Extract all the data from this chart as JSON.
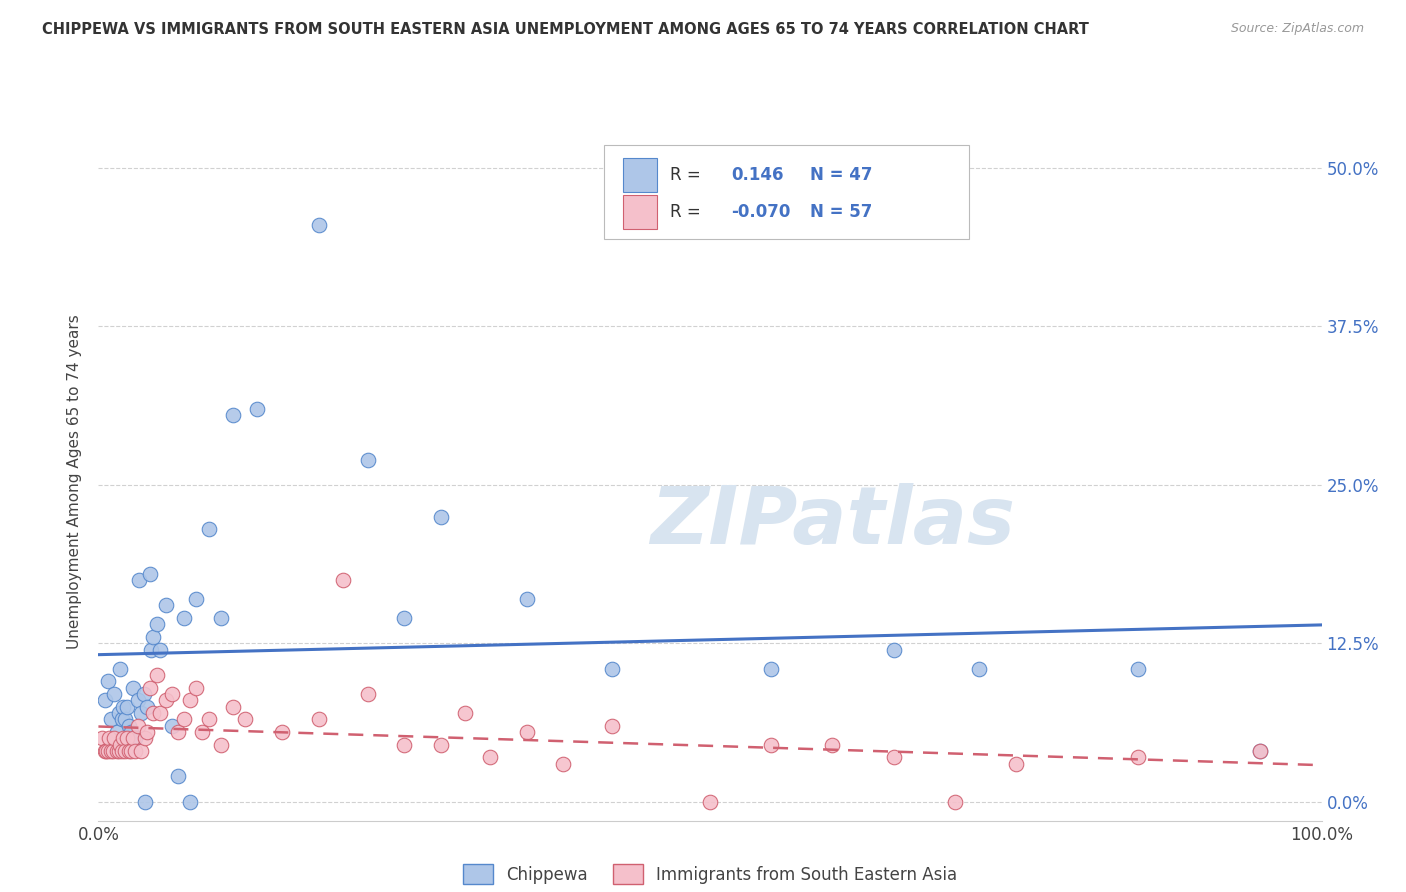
{
  "title": "CHIPPEWA VS IMMIGRANTS FROM SOUTH EASTERN ASIA UNEMPLOYMENT AMONG AGES 65 TO 74 YEARS CORRELATION CHART",
  "source": "Source: ZipAtlas.com",
  "ylabel": "Unemployment Among Ages 65 to 74 years",
  "xlim": [
    0.0,
    1.0
  ],
  "ylim": [
    -0.015,
    0.52
  ],
  "xticks": [
    0.0,
    0.25,
    0.5,
    0.75,
    1.0
  ],
  "xticklabels": [
    "0.0%",
    "",
    "",
    "",
    "100.0%"
  ],
  "yticks": [
    0.0,
    0.125,
    0.25,
    0.375,
    0.5
  ],
  "yticklabels_right": [
    "0.0%",
    "12.5%",
    "25.0%",
    "37.5%",
    "50.0%"
  ],
  "chippewa_R": 0.146,
  "chippewa_N": 47,
  "immigrants_R": -0.07,
  "immigrants_N": 57,
  "chippewa_color": "#aec6e8",
  "chippewa_edge_color": "#5588cc",
  "chippewa_line_color": "#4472c4",
  "immigrants_color": "#f5c0cb",
  "immigrants_edge_color": "#d06070",
  "immigrants_line_color": "#d06070",
  "background_color": "#ffffff",
  "watermark_text": "ZIPatlas",
  "watermark_color": "#d8e4f0",
  "grid_color": "#cccccc",
  "right_axis_color": "#4472c4",
  "title_color": "#333333",
  "source_color": "#999999",
  "chippewa_x": [
    0.005,
    0.008,
    0.01,
    0.013,
    0.015,
    0.017,
    0.018,
    0.019,
    0.02,
    0.022,
    0.023,
    0.025,
    0.027,
    0.028,
    0.03,
    0.032,
    0.033,
    0.035,
    0.037,
    0.038,
    0.04,
    0.042,
    0.043,
    0.045,
    0.048,
    0.05,
    0.055,
    0.06,
    0.065,
    0.07,
    0.075,
    0.08,
    0.09,
    0.1,
    0.11,
    0.13,
    0.18,
    0.22,
    0.25,
    0.28,
    0.35,
    0.42,
    0.55,
    0.65,
    0.72,
    0.85,
    0.95
  ],
  "chippewa_y": [
    0.08,
    0.095,
    0.065,
    0.085,
    0.055,
    0.07,
    0.105,
    0.065,
    0.075,
    0.065,
    0.075,
    0.06,
    0.055,
    0.09,
    0.05,
    0.08,
    0.175,
    0.07,
    0.085,
    0.0,
    0.075,
    0.18,
    0.12,
    0.13,
    0.14,
    0.12,
    0.155,
    0.06,
    0.02,
    0.145,
    0.0,
    0.16,
    0.215,
    0.145,
    0.305,
    0.31,
    0.455,
    0.27,
    0.145,
    0.225,
    0.16,
    0.105,
    0.105,
    0.12,
    0.105,
    0.105,
    0.04
  ],
  "immigrants_x": [
    0.003,
    0.005,
    0.006,
    0.008,
    0.009,
    0.01,
    0.012,
    0.013,
    0.015,
    0.017,
    0.018,
    0.019,
    0.02,
    0.022,
    0.023,
    0.025,
    0.027,
    0.028,
    0.03,
    0.032,
    0.035,
    0.038,
    0.04,
    0.042,
    0.045,
    0.048,
    0.05,
    0.055,
    0.06,
    0.065,
    0.07,
    0.075,
    0.08,
    0.085,
    0.09,
    0.1,
    0.11,
    0.12,
    0.15,
    0.18,
    0.2,
    0.22,
    0.25,
    0.28,
    0.3,
    0.32,
    0.35,
    0.38,
    0.42,
    0.5,
    0.55,
    0.6,
    0.65,
    0.7,
    0.75,
    0.85,
    0.95
  ],
  "immigrants_y": [
    0.05,
    0.04,
    0.04,
    0.04,
    0.05,
    0.04,
    0.04,
    0.05,
    0.04,
    0.04,
    0.045,
    0.04,
    0.05,
    0.04,
    0.05,
    0.04,
    0.04,
    0.05,
    0.04,
    0.06,
    0.04,
    0.05,
    0.055,
    0.09,
    0.07,
    0.1,
    0.07,
    0.08,
    0.085,
    0.055,
    0.065,
    0.08,
    0.09,
    0.055,
    0.065,
    0.045,
    0.075,
    0.065,
    0.055,
    0.065,
    0.175,
    0.085,
    0.045,
    0.045,
    0.07,
    0.035,
    0.055,
    0.03,
    0.06,
    0.0,
    0.045,
    0.045,
    0.035,
    0.0,
    0.03,
    0.035,
    0.04
  ]
}
